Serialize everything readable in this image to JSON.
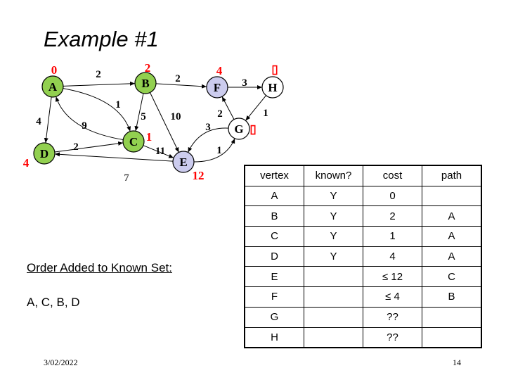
{
  "title": "Example #1",
  "graph": {
    "nodes": [
      {
        "id": "A",
        "label": "0",
        "known": true
      },
      {
        "id": "B",
        "label": "2",
        "known": true
      },
      {
        "id": "C",
        "label": "1",
        "known": true
      },
      {
        "id": "D",
        "label": "4",
        "known": true
      },
      {
        "id": "E",
        "label": "12",
        "known": false,
        "frontier": true
      },
      {
        "id": "F",
        "label": "4",
        "known": false,
        "frontier": true
      },
      {
        "id": "G",
        "label": "▯",
        "known": false
      },
      {
        "id": "H",
        "label": "▯",
        "known": false
      }
    ],
    "edges": [
      {
        "from": "A",
        "to": "B",
        "weight": "2"
      },
      {
        "from": "A",
        "to": "C",
        "weight": "1"
      },
      {
        "from": "A",
        "to": "D",
        "weight": "4"
      },
      {
        "from": "C",
        "to": "A",
        "weight": "9"
      },
      {
        "from": "B",
        "to": "C",
        "weight": "5"
      },
      {
        "from": "B",
        "to": "E",
        "weight": "10"
      },
      {
        "from": "B",
        "to": "F",
        "weight": "2"
      },
      {
        "from": "D",
        "to": "C",
        "weight": "2"
      },
      {
        "from": "C",
        "to": "E",
        "weight": "11"
      },
      {
        "from": "E",
        "to": "D",
        "weight": "7"
      },
      {
        "from": "F",
        "to": "H",
        "weight": "3"
      },
      {
        "from": "H",
        "to": "G",
        "weight": "1"
      },
      {
        "from": "G",
        "to": "F",
        "weight": "2"
      },
      {
        "from": "G",
        "to": "E",
        "weight": "3"
      },
      {
        "from": "E",
        "to": "G",
        "weight": "1"
      }
    ],
    "colors": {
      "known": "#92d050",
      "frontier": "#ccccee",
      "unknown": "#ffffff",
      "cost_label": "#ff0000"
    }
  },
  "order": {
    "heading": "Order Added to Known Set:",
    "value": "A, C, B, D"
  },
  "table": {
    "headers": [
      "vertex",
      "known?",
      "cost",
      "path"
    ],
    "rows": [
      [
        "A",
        "Y",
        "0",
        ""
      ],
      [
        "B",
        "Y",
        "2",
        "A"
      ],
      [
        "C",
        "Y",
        "1",
        "A"
      ],
      [
        "D",
        "Y",
        "4",
        "A"
      ],
      [
        "E",
        "",
        "≤ 12",
        "C"
      ],
      [
        "F",
        "",
        "≤ 4",
        "B"
      ],
      [
        "G",
        "",
        "??",
        ""
      ],
      [
        "H",
        "",
        "??",
        ""
      ]
    ]
  },
  "footer": {
    "date": "3/02/2022",
    "page": "14"
  }
}
